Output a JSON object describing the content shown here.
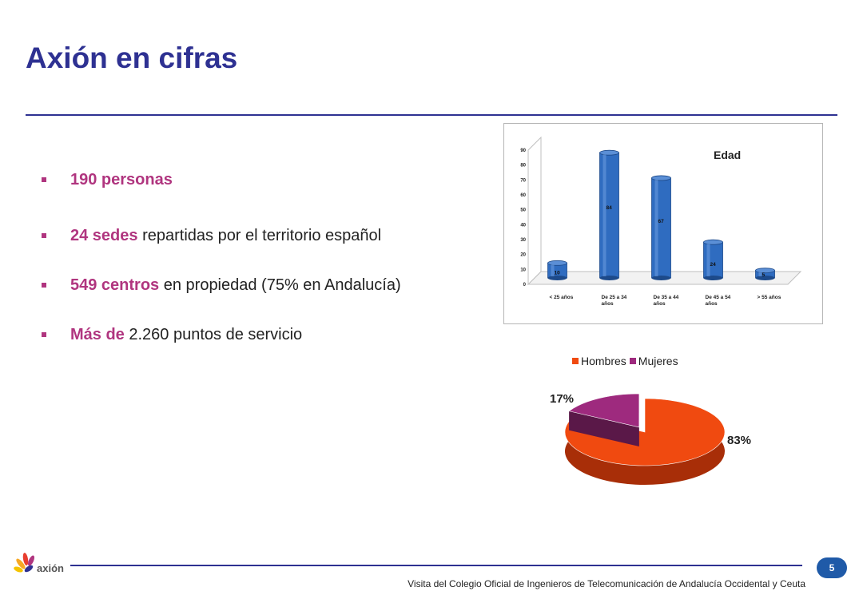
{
  "slide": {
    "title": "Axión en cifras",
    "bullets": [
      {
        "em": "190 personas",
        "rest": ""
      },
      {
        "em": "24 sedes",
        "rest": " repartidas por el territorio español"
      },
      {
        "em": "549 centros",
        "rest": " en propiedad (75% en Andalucía)"
      },
      {
        "em": "Más de",
        "rest": " 2.260 puntos de servicio"
      }
    ]
  },
  "colors": {
    "title": "#2e3192",
    "bullet_emphasis": "#b0357f",
    "bar": "#2f6cc0",
    "pie_hombres": "#f04a10",
    "pie_mujeres": "#9e2a7e",
    "page_badge": "#1f5aa8"
  },
  "chart_data": [
    {
      "type": "bar",
      "title": "Edad",
      "categories": [
        "< 25 años",
        "De 25 a 34 años",
        "De 35 a 44 años",
        "De 45 a 54 años",
        "> 55 años"
      ],
      "values": [
        10,
        84,
        67,
        24,
        5
      ],
      "ylim": [
        0,
        90
      ],
      "yticks": [
        0,
        10,
        20,
        30,
        40,
        50,
        60,
        70,
        80,
        90
      ],
      "style": "3d-cylinder"
    },
    {
      "type": "pie",
      "categories": [
        "Hombres",
        "Mujeres"
      ],
      "values": [
        83,
        17
      ],
      "labels": [
        "83%",
        "17%"
      ],
      "legend": "top",
      "style": "3d-exploded"
    }
  ],
  "footer": {
    "page_number": "5",
    "text": "Visita del Colegio Oficial de Ingenieros de Telecomunicación de Andalucía Occidental y Ceuta",
    "logo_text": "axión"
  }
}
